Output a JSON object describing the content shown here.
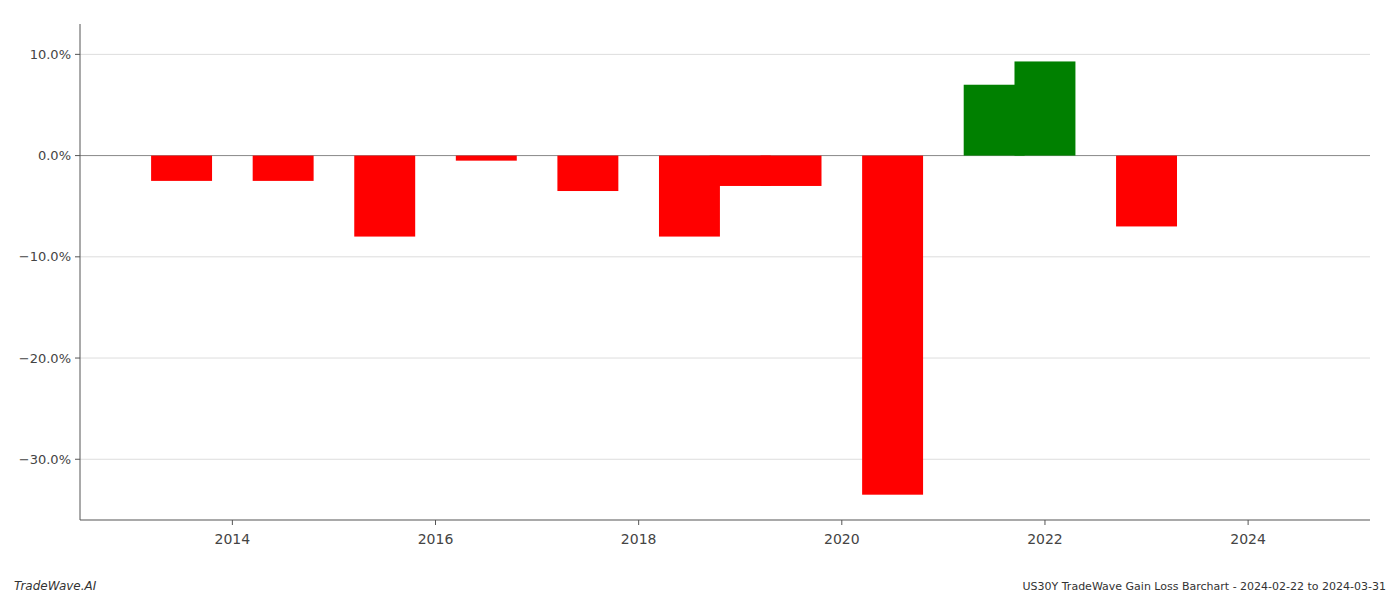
{
  "chart_data": {
    "type": "bar",
    "x": [
      2013.5,
      2014.5,
      2015.5,
      2016.5,
      2017.5,
      2018.5,
      2019.0,
      2019.5,
      2020.5,
      2021.5,
      2022.0,
      2023.0
    ],
    "values": [
      -2.5,
      -2.5,
      -8.0,
      -0.5,
      -3.5,
      -8.0,
      -3.0,
      -3.0,
      -33.5,
      7.0,
      9.3,
      -7.0
    ],
    "colors": [
      "#FF0000",
      "#FF0000",
      "#FF0000",
      "#FF0000",
      "#FF0000",
      "#FF0000",
      "#FF0000",
      "#FF0000",
      "#FF0000",
      "#008000",
      "#008000",
      "#FF0000"
    ],
    "xlim": [
      2012.5,
      2025.2
    ],
    "xticks": [
      2014,
      2016,
      2018,
      2020,
      2022,
      2024
    ],
    "ylim": [
      -36,
      13
    ],
    "yticks": [
      {
        "value": 10.0,
        "label": "10.0%"
      },
      {
        "value": 0.0,
        "label": "0.0%"
      },
      {
        "value": -10.0,
        "label": "−10.0%"
      },
      {
        "value": -20.0,
        "label": "−20.0%"
      },
      {
        "value": -30.0,
        "label": "−30.0%"
      }
    ],
    "grid": true,
    "annotations": [
      "TradeWave.AI",
      "US30Y TradeWave Gain Loss Barchart - 2024-02-22 to 2024-03-31"
    ]
  }
}
